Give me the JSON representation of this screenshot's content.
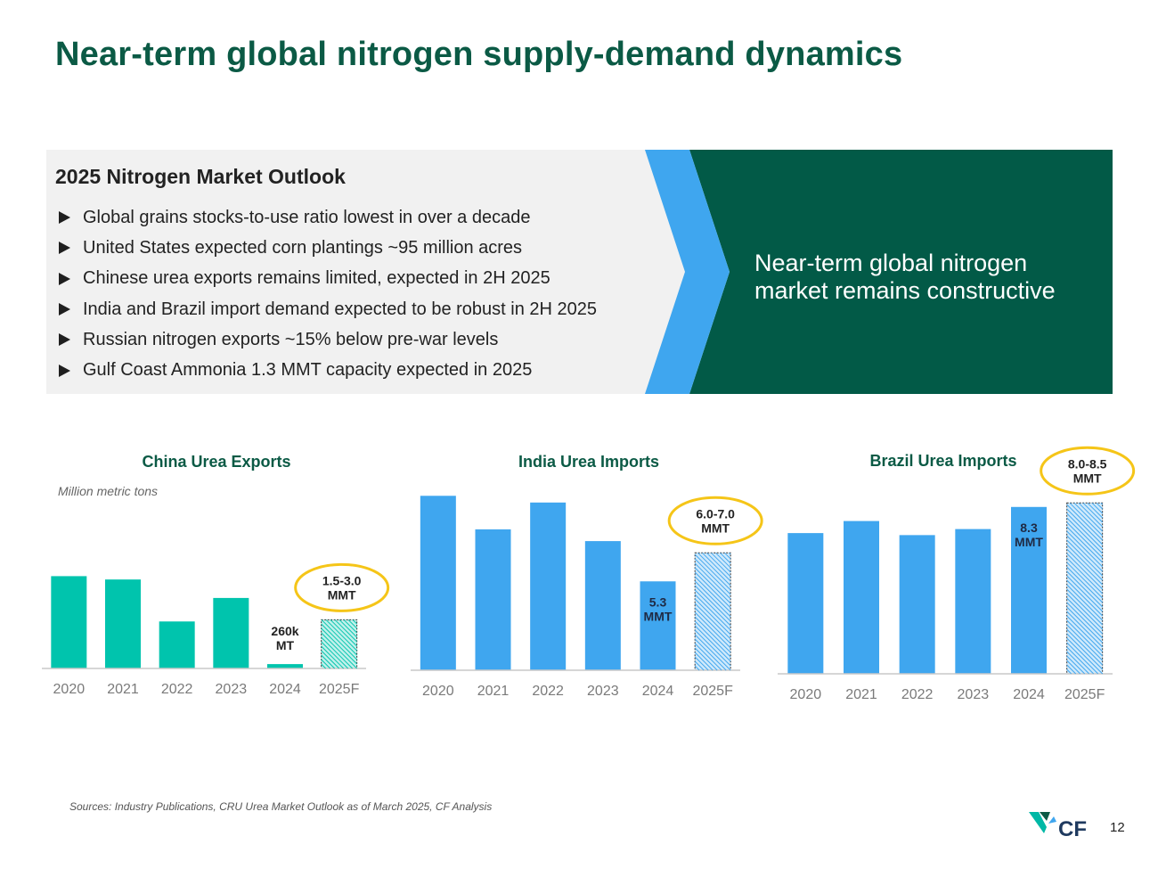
{
  "title": "Near-term global nitrogen supply-demand dynamics",
  "outlook": {
    "title": "2025 Nitrogen Market Outlook",
    "bullets": [
      "Global grains stocks-to-use ratio lowest in over a decade",
      "United States expected corn plantings ~95 million acres",
      "Chinese urea exports remains limited, expected in 2H 2025",
      "India and Brazil import demand expected to be robust in 2H 2025",
      "Russian nitrogen exports ~15% below pre-war levels",
      "Gulf Coast Ammonia 1.3 MMT capacity expected in 2025"
    ],
    "conclusion": "Near-term global nitrogen market remains constructive"
  },
  "unit_note": "Million metric tons",
  "source": "Sources: Industry Publications, CRU Urea Market Outlook as of March 2025, CF Analysis",
  "page_number": "12",
  "logo_text": "CF",
  "colors": {
    "title_green": "#0b5a45",
    "banner_dark_green": "#025a47",
    "chevron_blue": "#3fa6ef",
    "china_bar": "#00c4ad",
    "import_bar": "#3fa6ef",
    "callout_outline": "#f5c518"
  },
  "chart_data": [
    {
      "type": "bar",
      "title": "China Urea Exports",
      "categories": [
        "2020",
        "2021",
        "2022",
        "2023",
        "2024",
        "2025F"
      ],
      "values": [
        5.5,
        5.3,
        2.8,
        4.2,
        0.26,
        2.9
      ],
      "forecast_category": "2025F",
      "forecast_range": [
        1.5,
        3.0
      ],
      "data_labels": [
        {
          "category": "2024",
          "text": "260k\nMT"
        }
      ],
      "callout": {
        "category": "2025F",
        "text": "1.5-3.0\nMMT"
      },
      "ylim": [
        0,
        6
      ],
      "grid": false
    },
    {
      "type": "bar",
      "title": "India Urea Imports",
      "categories": [
        "2020",
        "2021",
        "2022",
        "2023",
        "2024",
        "2025F"
      ],
      "values": [
        10.4,
        8.4,
        10.0,
        7.7,
        5.3,
        7.0
      ],
      "forecast_category": "2025F",
      "forecast_range": [
        6.0,
        7.0
      ],
      "data_labels": [
        {
          "category": "2024",
          "text": "5.3\nMMT"
        }
      ],
      "callout": {
        "category": "2025F",
        "text": "6.0-7.0\nMMT"
      },
      "ylim": [
        0,
        11
      ],
      "grid": false
    },
    {
      "type": "bar",
      "title": "Brazil Urea Imports",
      "categories": [
        "2020",
        "2021",
        "2022",
        "2023",
        "2024",
        "2025F"
      ],
      "values": [
        7.0,
        7.6,
        6.9,
        7.2,
        8.3,
        8.5
      ],
      "forecast_category": "2025F",
      "forecast_range": [
        8.0,
        8.5
      ],
      "data_labels": [
        {
          "category": "2024",
          "text": "8.3\nMMT"
        }
      ],
      "callout": {
        "category": "2025F",
        "text": "8.0-8.5\nMMT"
      },
      "ylim": [
        0,
        9
      ],
      "grid": false
    }
  ]
}
